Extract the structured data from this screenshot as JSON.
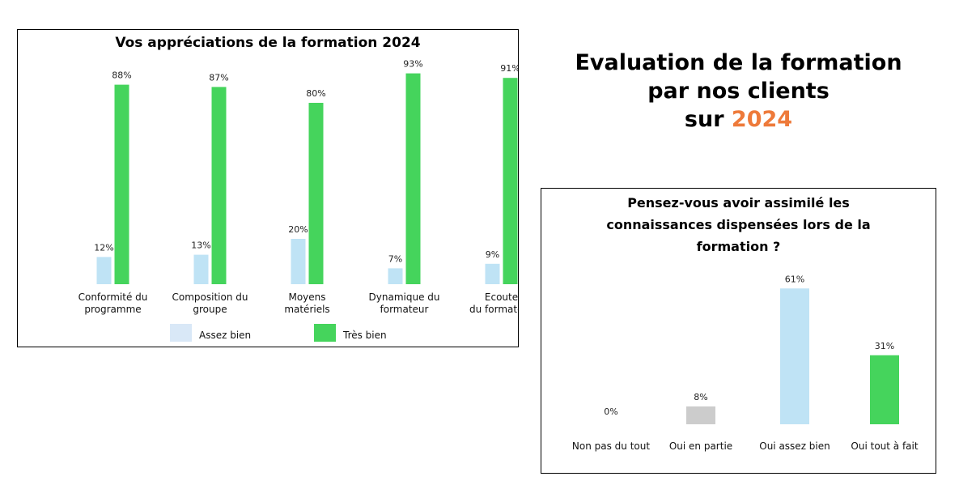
{
  "heading": {
    "line1": "Evaluation de la formation",
    "line2": "par nos clients",
    "line3_prefix": "sur ",
    "year": "2024",
    "accent_color": "#ee7a3a"
  },
  "chart_data": [
    {
      "type": "bar",
      "title": "Vos appréciations de la formation 2024",
      "categories": [
        [
          "Conformité du",
          "programme"
        ],
        [
          "Composition du",
          "groupe"
        ],
        [
          "Moyens",
          "matériels"
        ],
        [
          "Dynamique du",
          "formateur"
        ],
        [
          "Ecoute",
          "du formateur"
        ]
      ],
      "series": [
        {
          "name": "Assez bien",
          "values": [
            12,
            13,
            20,
            7,
            9
          ],
          "labels": [
            "12%",
            "13%",
            "20%",
            "7%",
            "9%"
          ],
          "color": "#bfe3f5",
          "legend_color": "#d9e8f7"
        },
        {
          "name": "Très bien",
          "values": [
            88,
            87,
            80,
            93,
            91
          ],
          "labels": [
            "88%",
            "87%",
            "80%",
            "93%",
            "91%"
          ],
          "color": "#45d45c",
          "legend_color": "#45d45c"
        }
      ],
      "ylim": [
        0,
        100
      ],
      "legend_position": "bottom"
    },
    {
      "type": "bar",
      "title": "Pensez-vous avoir assimilé les connaissances dispensées lors de la formation ?",
      "title_lines": [
        "Pensez-vous avoir assimilé les",
        "connaissances dispensées lors de la",
        "formation ?"
      ],
      "categories": [
        "Non pas du tout",
        "Oui en partie",
        "Oui assez bien",
        "Oui tout à fait"
      ],
      "values": [
        0,
        8,
        61,
        31
      ],
      "labels": [
        "0%",
        "8%",
        "61%",
        "31%"
      ],
      "colors": [
        "#cccccc",
        "#cccccc",
        "#bfe3f5",
        "#45d45c"
      ],
      "ylim": [
        0,
        100
      ]
    }
  ]
}
